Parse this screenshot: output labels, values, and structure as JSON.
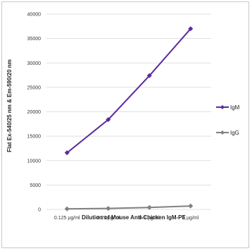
{
  "chart_data": {
    "type": "line",
    "title": "",
    "xlabel": "Dilution of Mouse Anti-Chicken IgM-PE",
    "ylabel": "Flat Ex-540/25 nm & Em-590/20 nm",
    "categories": [
      "0.125 µg/ml",
      "0.25 µg/ml",
      "0.5 µg/ml",
      "1 µg/ml"
    ],
    "y_ticks": [
      "0",
      "5000",
      "10000",
      "15000",
      "20000",
      "25000",
      "30000",
      "35000",
      "40000"
    ],
    "ylim": [
      0,
      40000
    ],
    "grid": true,
    "legend_position": "right",
    "series": [
      {
        "name": "IgM",
        "values": [
          11600,
          18400,
          27400,
          37000
        ],
        "color": "#5b2a9e"
      },
      {
        "name": "IgG",
        "values": [
          100,
          200,
          400,
          700
        ],
        "color": "#808080"
      }
    ]
  }
}
